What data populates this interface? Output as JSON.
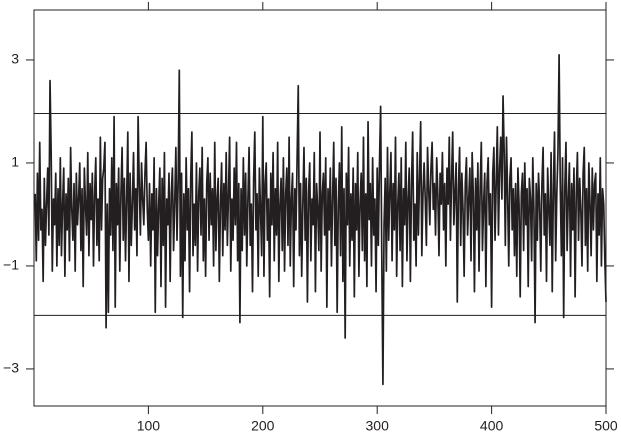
{
  "chart_data": {
    "type": "line",
    "x": [
      1,
      2,
      3,
      4,
      5,
      6,
      7,
      8,
      9,
      10,
      11,
      12,
      13,
      14,
      15,
      16,
      17,
      18,
      19,
      20,
      21,
      22,
      23,
      24,
      25,
      26,
      27,
      28,
      29,
      30,
      31,
      32,
      33,
      34,
      35,
      36,
      37,
      38,
      39,
      40,
      41,
      42,
      43,
      44,
      45,
      46,
      47,
      48,
      49,
      50,
      51,
      52,
      53,
      54,
      55,
      56,
      57,
      58,
      59,
      60,
      61,
      62,
      63,
      64,
      65,
      66,
      67,
      68,
      69,
      70,
      71,
      72,
      73,
      74,
      75,
      76,
      77,
      78,
      79,
      80,
      81,
      82,
      83,
      84,
      85,
      86,
      87,
      88,
      89,
      90,
      91,
      92,
      93,
      94,
      95,
      96,
      97,
      98,
      99,
      100,
      101,
      102,
      103,
      104,
      105,
      106,
      107,
      108,
      109,
      110,
      111,
      112,
      113,
      114,
      115,
      116,
      117,
      118,
      119,
      120,
      121,
      122,
      123,
      124,
      125,
      126,
      127,
      128,
      129,
      130,
      131,
      132,
      133,
      134,
      135,
      136,
      137,
      138,
      139,
      140,
      141,
      142,
      143,
      144,
      145,
      146,
      147,
      148,
      149,
      150,
      151,
      152,
      153,
      154,
      155,
      156,
      157,
      158,
      159,
      160,
      161,
      162,
      163,
      164,
      165,
      166,
      167,
      168,
      169,
      170,
      171,
      172,
      173,
      174,
      175,
      176,
      177,
      178,
      179,
      180,
      181,
      182,
      183,
      184,
      185,
      186,
      187,
      188,
      189,
      190,
      191,
      192,
      193,
      194,
      195,
      196,
      197,
      198,
      199,
      200,
      201,
      202,
      203,
      204,
      205,
      206,
      207,
      208,
      209,
      210,
      211,
      212,
      213,
      214,
      215,
      216,
      217,
      218,
      219,
      220,
      221,
      222,
      223,
      224,
      225,
      226,
      227,
      228,
      229,
      230,
      231,
      232,
      233,
      234,
      235,
      236,
      237,
      238,
      239,
      240,
      241,
      242,
      243,
      244,
      245,
      246,
      247,
      248,
      249,
      250,
      251,
      252,
      253,
      254,
      255,
      256,
      257,
      258,
      259,
      260,
      261,
      262,
      263,
      264,
      265,
      266,
      267,
      268,
      269,
      270,
      271,
      272,
      273,
      274,
      275,
      276,
      277,
      278,
      279,
      280,
      281,
      282,
      283,
      284,
      285,
      286,
      287,
      288,
      289,
      290,
      291,
      292,
      293,
      294,
      295,
      296,
      297,
      298,
      299,
      300,
      301,
      302,
      303,
      304,
      305,
      306,
      307,
      308,
      309,
      310,
      311,
      312,
      313,
      314,
      315,
      316,
      317,
      318,
      319,
      320,
      321,
      322,
      323,
      324,
      325,
      326,
      327,
      328,
      329,
      330,
      331,
      332,
      333,
      334,
      335,
      336,
      337,
      338,
      339,
      340,
      341,
      342,
      343,
      344,
      345,
      346,
      347,
      348,
      349,
      350,
      351,
      352,
      353,
      354,
      355,
      356,
      357,
      358,
      359,
      360,
      361,
      362,
      363,
      364,
      365,
      366,
      367,
      368,
      369,
      370,
      371,
      372,
      373,
      374,
      375,
      376,
      377,
      378,
      379,
      380,
      381,
      382,
      383,
      384,
      385,
      386,
      387,
      388,
      389,
      390,
      391,
      392,
      393,
      394,
      395,
      396,
      397,
      398,
      399,
      400,
      401,
      402,
      403,
      404,
      405,
      406,
      407,
      408,
      409,
      410,
      411,
      412,
      413,
      414,
      415,
      416,
      417,
      418,
      419,
      420,
      421,
      422,
      423,
      424,
      425,
      426,
      427,
      428,
      429,
      430,
      431,
      432,
      433,
      434,
      435,
      436,
      437,
      438,
      439,
      440,
      441,
      442,
      443,
      444,
      445,
      446,
      447,
      448,
      449,
      450,
      451,
      452,
      453,
      454,
      455,
      456,
      457,
      458,
      459,
      460,
      461,
      462,
      463,
      464,
      465,
      466,
      467,
      468,
      469,
      470,
      471,
      472,
      473,
      474,
      475,
      476,
      477,
      478,
      479,
      480,
      481,
      482,
      483,
      484,
      485,
      486,
      487,
      488,
      489,
      490,
      491,
      492,
      493,
      494,
      495,
      496,
      497,
      498,
      499,
      500
    ],
    "values": [
      0.4,
      -0.9,
      0.8,
      -0.5,
      1.4,
      -0.3,
      0.1,
      -1.3,
      0.7,
      -0.6,
      0.2,
      0.9,
      -0.4,
      2.6,
      1.2,
      -1.1,
      0.3,
      -0.2,
      0.8,
      -1.0,
      0.5,
      -0.6,
      1.1,
      -0.8,
      0.2,
      0.9,
      -1.2,
      0.4,
      -0.3,
      0.7,
      -0.9,
      1.3,
      0.1,
      -0.5,
      0.6,
      -1.1,
      0.8,
      -0.2,
      0.3,
      1.0,
      -0.7,
      0.5,
      -1.4,
      0.9,
      0.2,
      -0.4,
      1.2,
      -0.8,
      0.6,
      -0.1,
      0.8,
      -1.0,
      0.4,
      1.1,
      -0.6,
      0.3,
      -0.9,
      1.5,
      -0.3,
      0.7,
      0.9,
      1.4,
      -2.2,
      0.2,
      -1.9,
      0.5,
      -0.4,
      1.1,
      -0.7,
      1.9,
      -1.8,
      0.6,
      -0.2,
      0.9,
      -1.1,
      0.4,
      1.3,
      -0.5,
      0.7,
      -0.9,
      0.3,
      1.6,
      -1.3,
      0.8,
      -0.6,
      0.2,
      1.2,
      -0.3,
      0.5,
      -0.8,
      1.9,
      0.6,
      -0.4,
      1.0,
      0.3,
      -0.2,
      0.8,
      1.4,
      0.1,
      -0.5,
      0.6,
      -1.0,
      0.4,
      -0.3,
      1.1,
      -1.9,
      0.5,
      -0.8,
      0.2,
      0.9,
      -1.4,
      0.7,
      -0.6,
      1.2,
      -1.8,
      0.3,
      -0.2,
      0.8,
      -1.3,
      0.4,
      0.9,
      -0.7,
      0.2,
      1.3,
      -0.5,
      0.6,
      2.8,
      -1.2,
      0.8,
      -2.0,
      0.4,
      -0.9,
      1.1,
      -0.3,
      0.5,
      -1.5,
      0.7,
      1.6,
      -0.8,
      0.2,
      -0.6,
      1.0,
      -1.1,
      0.4,
      0.9,
      -0.4,
      1.3,
      -0.9,
      0.3,
      -1.2,
      0.6,
      1.1,
      -0.5,
      0.8,
      -0.2,
      0.5,
      -1.0,
      1.4,
      -0.7,
      0.3,
      0.7,
      -1.3,
      0.2,
      1.0,
      -0.8,
      0.6,
      -0.3,
      1.2,
      -0.6,
      0.4,
      1.5,
      -1.1,
      0.3,
      -0.5,
      0.9,
      -0.2,
      1.4,
      -0.9,
      0.6,
      -2.1,
      0.5,
      -0.7,
      1.1,
      -0.4,
      0.8,
      -1.0,
      0.3,
      1.3,
      -0.6,
      0.2,
      -1.5,
      0.7,
      1.6,
      -0.3,
      0.4,
      -1.2,
      0.9,
      0.1,
      -0.8,
      1.9,
      -1.2,
      0.6,
      1.0,
      -0.5,
      0.3,
      -1.6,
      0.8,
      -0.2,
      1.2,
      -0.9,
      0.5,
      -0.4,
      1.4,
      -1.3,
      0.2,
      0.7,
      -0.7,
      1.1,
      -1.1,
      0.4,
      0.9,
      -0.6,
      1.5,
      -1.0,
      0.3,
      0.8,
      -1.4,
      0.5,
      -0.3,
      1.1,
      2.5,
      -0.8,
      0.6,
      -1.2,
      0.2,
      1.3,
      -0.5,
      0.7,
      -1.7,
      0.4,
      1.0,
      -0.9,
      0.3,
      -0.2,
      1.2,
      -1.5,
      0.6,
      0.1,
      -0.7,
      1.6,
      -1.1,
      0.4,
      0.8,
      -0.4,
      1.1,
      -1.8,
      0.5,
      -0.3,
      0.9,
      -1.0,
      0.3,
      1.4,
      -0.6,
      0.7,
      -1.9,
      0.2,
      1.0,
      -0.8,
      1.7,
      -1.3,
      0.5,
      -2.4,
      0.8,
      -0.2,
      1.3,
      -1.0,
      0.4,
      -0.5,
      0.9,
      -1.6,
      0.6,
      -0.3,
      1.2,
      -1.2,
      0.2,
      0.8,
      -0.7,
      1.5,
      -0.9,
      0.4,
      -1.4,
      1.8,
      -0.1,
      0.6,
      -1.0,
      1.1,
      -0.4,
      0.3,
      -1.5,
      0.9,
      -0.6,
      1.0,
      2.1,
      -0.8,
      -3.3,
      -0.2,
      0.7,
      -1.1,
      1.3,
      -0.5,
      0.4,
      1.2,
      -0.9,
      0.6,
      -0.3,
      1.5,
      -1.2,
      0.2,
      0.8,
      -0.7,
      1.1,
      -1.4,
      0.5,
      -0.2,
      1.4,
      -0.9,
      0.3,
      0.9,
      -1.3,
      0.6,
      1.6,
      -0.5,
      0.2,
      -1.0,
      1.2,
      -0.4,
      0.7,
      1.8,
      -0.8,
      0.4,
      1.0,
      0.3,
      -0.6,
      1.3,
      0.5,
      -0.2,
      0.9,
      1.4,
      0.1,
      0.6,
      -0.4,
      1.1,
      0.4,
      -0.8,
      0.8,
      0.2,
      1.2,
      -0.3,
      0.6,
      -1.0,
      0.9,
      0.2,
      1.5,
      -0.5,
      0.7,
      1.6,
      -0.2,
      0.4,
      1.0,
      -1.7,
      0.5,
      1.3,
      -0.6,
      0.8,
      0.1,
      -1.2,
      0.6,
      1.1,
      -0.4,
      0.3,
      0.9,
      -0.9,
      1.2,
      0.4,
      -1.5,
      0.7,
      -0.3,
      1.0,
      -1.1,
      0.5,
      1.4,
      -0.7,
      0.2,
      0.8,
      -1.4,
      0.6,
      1.1,
      -0.2,
      0.4,
      -1.8,
      0.8,
      1.3,
      -0.5,
      0.6,
      1.7,
      -0.4,
      0.9,
      1.5,
      0.3,
      2.3,
      1.2,
      -0.6,
      1.5,
      0.4,
      -1.0,
      0.7,
      1.1,
      -0.3,
      0.5,
      -0.8,
      0.6,
      -1.2,
      0.9,
      0.2,
      -1.6,
      0.4,
      0.8,
      -0.7,
      1.0,
      -0.2,
      0.5,
      -1.4,
      0.7,
      0.3,
      -0.9,
      1.1,
      0.1,
      -2.1,
      0.6,
      -0.5,
      0.8,
      0.2,
      -1.1,
      0.6,
      1.3,
      -0.4,
      0.4,
      -1.3,
      0.9,
      0.1,
      -0.6,
      1.2,
      -1.5,
      0.5,
      1.6,
      -0.9,
      0.4,
      1.2,
      3.1,
      0.6,
      -0.8,
      1.1,
      -2.0,
      0.5,
      1.4,
      -0.7,
      0.3,
      1.0,
      -1.2,
      0.6,
      -0.3,
      0.9,
      -1.6,
      0.4,
      1.2,
      -0.5,
      0.7,
      0.1,
      -1.0,
      0.8,
      1.3,
      -0.6,
      0.5,
      -1.1,
      1.0,
      0.2,
      -0.8,
      0.9,
      -0.3,
      0.6,
      0.8,
      -1.3,
      0.4,
      -0.4,
      1.1,
      -1.0,
      0.5,
      0.2,
      -0.9,
      -1.7
    ],
    "color": "#231f20",
    "hlines": [
      1.96,
      -1.96
    ],
    "xlim": [
      0,
      500
    ],
    "xticks": [
      100,
      200,
      300,
      400,
      500
    ],
    "ylim": [
      -3.72,
      3.97
    ],
    "yticks": [
      {
        "value": -3,
        "label": "−3"
      },
      {
        "value": -1,
        "label": "−1"
      },
      1,
      3
    ]
  }
}
